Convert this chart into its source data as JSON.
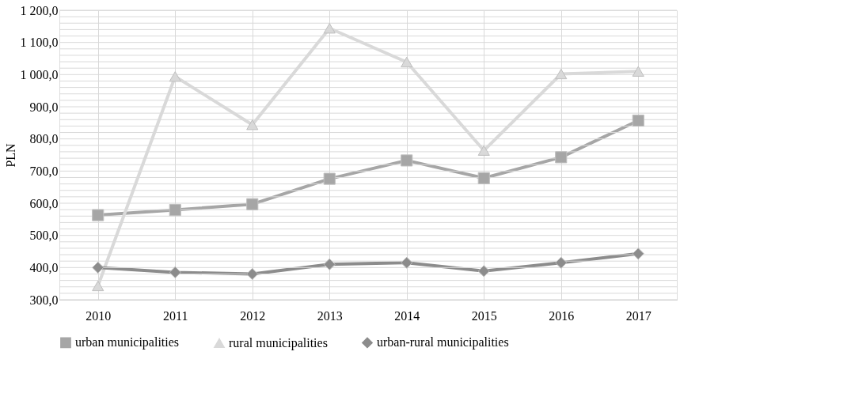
{
  "chart_data": {
    "type": "line",
    "ylabel": "PLN",
    "categories": [
      "2010",
      "2011",
      "2012",
      "2013",
      "2014",
      "2015",
      "2016",
      "2017"
    ],
    "series": [
      {
        "name": "urban municipalities",
        "color": "#a6a6a6",
        "marker": "square",
        "values": [
          563,
          579,
          597,
          676,
          733,
          678,
          743,
          857
        ]
      },
      {
        "name": "rural municipalities",
        "color": "#d9d9d9",
        "marker": "triangle",
        "values": [
          343,
          994,
          844,
          1144,
          1039,
          764,
          1002,
          1010
        ]
      },
      {
        "name": "urban-rural municipalities",
        "color": "#8c8c8c",
        "marker": "diamond",
        "values": [
          400,
          385,
          380,
          410,
          415,
          389,
          415,
          443
        ]
      }
    ],
    "ylim": [
      300,
      1200
    ],
    "yticks": [
      {
        "value": 300,
        "label": "300,0"
      },
      {
        "value": 320,
        "label": null
      },
      {
        "value": 340,
        "label": null
      },
      {
        "value": 360,
        "label": null
      },
      {
        "value": 380,
        "label": null
      },
      {
        "value": 400,
        "label": "400,0"
      },
      {
        "value": 420,
        "label": null
      },
      {
        "value": 440,
        "label": null
      },
      {
        "value": 460,
        "label": null
      },
      {
        "value": 480,
        "label": null
      },
      {
        "value": 500,
        "label": "500,0"
      },
      {
        "value": 520,
        "label": null
      },
      {
        "value": 540,
        "label": null
      },
      {
        "value": 560,
        "label": null
      },
      {
        "value": 580,
        "label": null
      },
      {
        "value": 600,
        "label": "600,0"
      },
      {
        "value": 620,
        "label": null
      },
      {
        "value": 640,
        "label": null
      },
      {
        "value": 660,
        "label": null
      },
      {
        "value": 680,
        "label": null
      },
      {
        "value": 700,
        "label": "700,0"
      },
      {
        "value": 720,
        "label": null
      },
      {
        "value": 740,
        "label": null
      },
      {
        "value": 760,
        "label": null
      },
      {
        "value": 780,
        "label": null
      },
      {
        "value": 800,
        "label": "800,0"
      },
      {
        "value": 820,
        "label": null
      },
      {
        "value": 840,
        "label": null
      },
      {
        "value": 860,
        "label": null
      },
      {
        "value": 880,
        "label": null
      },
      {
        "value": 900,
        "label": "900,0"
      },
      {
        "value": 920,
        "label": null
      },
      {
        "value": 940,
        "label": null
      },
      {
        "value": 960,
        "label": null
      },
      {
        "value": 980,
        "label": null
      },
      {
        "value": 1000,
        "label": "1 000,0"
      },
      {
        "value": 1020,
        "label": null
      },
      {
        "value": 1040,
        "label": null
      },
      {
        "value": 1060,
        "label": null
      },
      {
        "value": 1080,
        "label": null
      },
      {
        "value": 1100,
        "label": "1 100,0"
      },
      {
        "value": 1120,
        "label": null
      },
      {
        "value": 1140,
        "label": null
      },
      {
        "value": 1160,
        "label": null
      },
      {
        "value": 1180,
        "label": null
      },
      {
        "value": 1200,
        "label": "1 200,0"
      }
    ],
    "grid": true,
    "legend": "bottom",
    "line_style": "solid"
  }
}
